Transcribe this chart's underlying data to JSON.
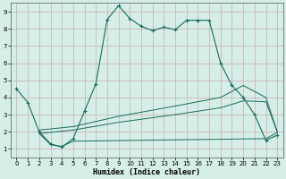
{
  "xlabel": "Humidex (Indice chaleur)",
  "bg_color": "#d6eee8",
  "grid_color": "#c8b8b8",
  "line_color": "#1a6b5a",
  "xlim": [
    -0.5,
    23.5
  ],
  "ylim": [
    0.5,
    9.5
  ],
  "xticks": [
    0,
    1,
    2,
    3,
    4,
    5,
    6,
    7,
    8,
    9,
    10,
    11,
    12,
    13,
    14,
    15,
    16,
    17,
    18,
    19,
    20,
    21,
    22,
    23
  ],
  "yticks": [
    1,
    2,
    3,
    4,
    5,
    6,
    7,
    8,
    9
  ],
  "line1_x": [
    0,
    1,
    2,
    3,
    4,
    5,
    6,
    7,
    8,
    9,
    10,
    11,
    12,
    13,
    14,
    15,
    16,
    17,
    18,
    19,
    20,
    21,
    22,
    23
  ],
  "line1_y": [
    4.5,
    3.7,
    2.0,
    1.3,
    1.1,
    1.6,
    3.2,
    4.8,
    8.55,
    9.35,
    8.6,
    8.15,
    7.9,
    8.1,
    7.95,
    8.5,
    8.5,
    8.5,
    6.0,
    4.7,
    4.0,
    3.0,
    1.5,
    1.8
  ],
  "line2_x": [
    2,
    3,
    4,
    5,
    22,
    23
  ],
  "line2_y": [
    1.9,
    1.25,
    1.15,
    1.45,
    1.6,
    1.95
  ],
  "line3_x": [
    2,
    5,
    9,
    14,
    18,
    20,
    22,
    23
  ],
  "line3_y": [
    1.9,
    2.1,
    2.55,
    3.0,
    3.4,
    3.8,
    3.75,
    2.0
  ],
  "line4_x": [
    2,
    5,
    9,
    14,
    18,
    20,
    22,
    23
  ],
  "line4_y": [
    2.1,
    2.3,
    2.9,
    3.5,
    4.0,
    4.7,
    4.0,
    2.0
  ]
}
